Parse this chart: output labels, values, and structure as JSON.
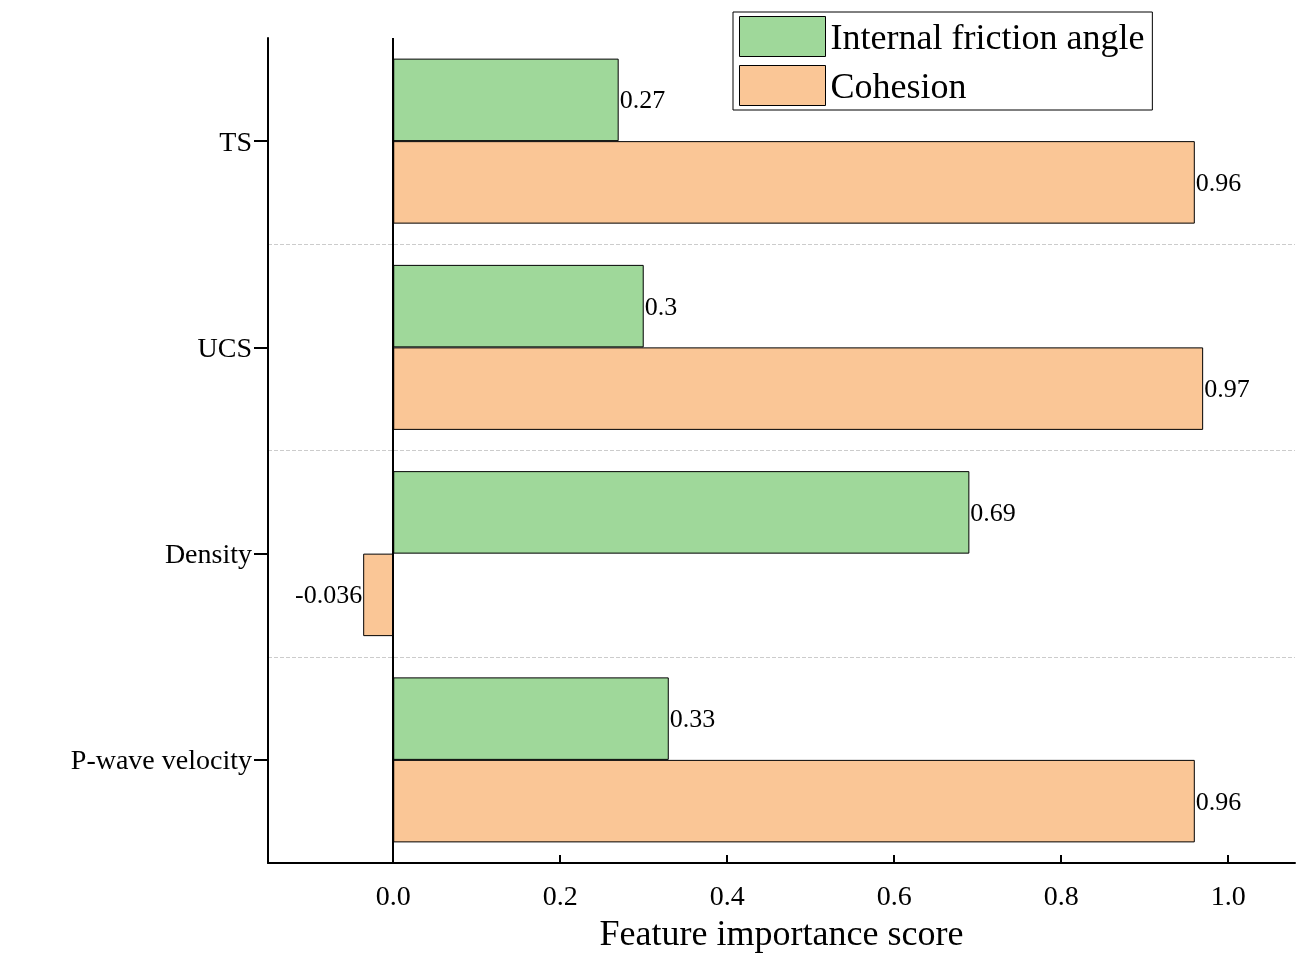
{
  "chart_data": {
    "type": "bar",
    "orientation": "horizontal",
    "xlabel": "Feature importance score",
    "categories": [
      "TS",
      "UCS",
      "Density",
      "P-wave velocity"
    ],
    "series": [
      {
        "name": "Internal friction angle",
        "color": "#9fd89a",
        "values": [
          0.27,
          0.3,
          0.69,
          0.33
        ]
      },
      {
        "name": "Cohesion",
        "color": "#fac696",
        "values": [
          0.96,
          0.97,
          -0.036,
          0.96
        ]
      }
    ],
    "xlim": [
      -0.15,
      1.08
    ],
    "xticks": [
      {
        "value": 0,
        "label": "0.0"
      },
      {
        "value": 0.2,
        "label": "0.2"
      },
      {
        "value": 0.4,
        "label": "0.4"
      },
      {
        "value": 0.6,
        "label": "0.6"
      },
      {
        "value": 0.8,
        "label": "0.8"
      },
      {
        "value": 1,
        "label": "1.0"
      }
    ],
    "ref_lines": [
      {
        "axis": "x",
        "value": 0,
        "color": "#000000"
      }
    ],
    "grid": "y",
    "data_labels": true,
    "legend": "top right"
  }
}
